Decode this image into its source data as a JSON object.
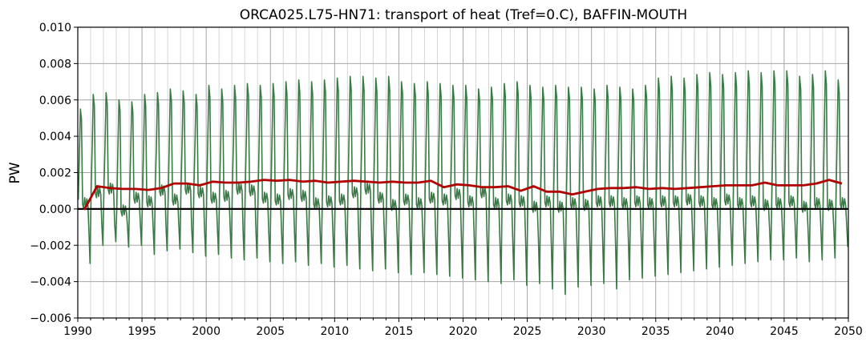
{
  "chart_data": {
    "type": "line",
    "title": "ORCA025.L75-HN71: transport of heat (Tref=0.C), BAFFIN-MOUTH",
    "xlabel": "",
    "ylabel": "PW",
    "xlim": [
      1990,
      2050
    ],
    "ylim": [
      -0.006,
      0.01
    ],
    "x_ticks": [
      "1990",
      "1995",
      "2000",
      "2005",
      "2010",
      "2015",
      "2020",
      "2025",
      "2030",
      "2035",
      "2040",
      "2045",
      "2050"
    ],
    "y_ticks": [
      "−0.006",
      "−0.004",
      "−0.002",
      "0.000",
      "0.002",
      "0.004",
      "0.006",
      "0.008",
      "0.010"
    ],
    "grid": true,
    "zero_line": 0.0,
    "colors": {
      "monthly": "#3a7a45",
      "annual": "#b00000",
      "zero": "#000000"
    },
    "series": [
      {
        "role": "monthly",
        "start_year": 1990.04,
        "step": 0.08333,
        "peak_months": [
          2,
          3
        ],
        "note_pattern": "seasonal cycle: sharp positive peak (~0.0055-0.0076 PW) in Feb-Mar, minimum (~-0.002 to -0.0047 PW) around Dec, small oscillations near 0 mid-year",
        "peaks": [
          0.0055,
          0.0063,
          0.0064,
          0.006,
          0.0059,
          0.0063,
          0.0064,
          0.0066,
          0.0065,
          0.0063,
          0.0068,
          0.0066,
          0.0068,
          0.0069,
          0.0068,
          0.0069,
          0.007,
          0.0071,
          0.007,
          0.0071,
          0.0072,
          0.0073,
          0.0073,
          0.0072,
          0.0073,
          0.007,
          0.0069,
          0.007,
          0.0069,
          0.0068,
          0.0068,
          0.0066,
          0.0067,
          0.0069,
          0.007,
          0.0068,
          0.0067,
          0.0068,
          0.0067,
          0.0067,
          0.0066,
          0.0068,
          0.0067,
          0.0066,
          0.0068,
          0.0072,
          0.0073,
          0.0072,
          0.0074,
          0.0075,
          0.0074,
          0.0075,
          0.0076,
          0.0075,
          0.0076,
          0.0076,
          0.0073,
          0.0074,
          0.0076,
          0.0071
        ],
        "troughs": [
          -0.003,
          -0.002,
          -0.0018,
          -0.0021,
          -0.002,
          -0.0025,
          -0.0023,
          -0.0022,
          -0.0024,
          -0.0026,
          -0.0025,
          -0.0027,
          -0.0028,
          -0.0027,
          -0.0029,
          -0.003,
          -0.0029,
          -0.0031,
          -0.003,
          -0.0032,
          -0.0031,
          -0.0033,
          -0.0034,
          -0.0033,
          -0.0035,
          -0.0036,
          -0.0035,
          -0.0036,
          -0.0037,
          -0.0038,
          -0.0039,
          -0.004,
          -0.0041,
          -0.0039,
          -0.0042,
          -0.0041,
          -0.0044,
          -0.0047,
          -0.0043,
          -0.0042,
          -0.0041,
          -0.0044,
          -0.0039,
          -0.0038,
          -0.0037,
          -0.0036,
          -0.0035,
          -0.0034,
          -0.0033,
          -0.0032,
          -0.0031,
          -0.003,
          -0.0029,
          -0.0028,
          -0.0028,
          -0.0027,
          -0.0029,
          -0.0028,
          -0.0027,
          -0.0021
        ],
        "midyear": [
          0.0002,
          0.0008,
          0.001,
          -0.0002,
          0.0005,
          0.0003,
          0.0009,
          0.0004,
          0.001,
          0.0008,
          0.0005,
          0.0006,
          0.001,
          0.0009,
          0.0005,
          0.0004,
          0.0007,
          0.0006,
          0.0002,
          0.0003,
          0.0004,
          0.0008,
          0.001,
          0.0005,
          0.0001,
          0.0004,
          0.0002,
          0.0005,
          0.0004,
          0.0007,
          0.0003,
          0.0008,
          0.0002,
          0.0004,
          0.0003,
          0.0,
          0.0003,
          0.0,
          0.0002,
          0.0001,
          0.0003,
          0.0003,
          0.0002,
          0.0003,
          0.0002,
          0.0003,
          0.0003,
          0.0004,
          0.0003,
          0.0002,
          0.0004,
          0.0002,
          0.0003,
          0.0001,
          0.0002,
          0.0003,
          0.0,
          0.0002,
          0.0001,
          0.0002
        ]
      },
      {
        "role": "annual",
        "x": [
          1990.5,
          1991.5,
          1992.5,
          1993.5,
          1994.5,
          1995.5,
          1996.5,
          1997.5,
          1998.5,
          1999.5,
          2000.5,
          2001.5,
          2002.5,
          2003.5,
          2004.5,
          2005.5,
          2006.5,
          2007.5,
          2008.5,
          2009.5,
          2010.5,
          2011.5,
          2012.5,
          2013.5,
          2014.5,
          2015.5,
          2016.5,
          2017.5,
          2018.5,
          2019.5,
          2020.5,
          2021.5,
          2022.5,
          2023.5,
          2024.5,
          2025.5,
          2026.5,
          2027.5,
          2028.5,
          2029.5,
          2030.5,
          2031.5,
          2032.5,
          2033.5,
          2034.5,
          2035.5,
          2036.5,
          2037.5,
          2038.5,
          2039.5,
          2040.5,
          2041.5,
          2042.5,
          2043.5,
          2044.5,
          2045.5,
          2046.5,
          2047.5,
          2048.5,
          2049.5
        ],
        "values": [
          -5e-05,
          0.00125,
          0.00115,
          0.0011,
          0.0011,
          0.00105,
          0.00115,
          0.0014,
          0.0014,
          0.0013,
          0.0015,
          0.00145,
          0.00145,
          0.0015,
          0.0016,
          0.00155,
          0.0016,
          0.0015,
          0.00155,
          0.00145,
          0.0015,
          0.00155,
          0.0015,
          0.00145,
          0.0015,
          0.00145,
          0.00145,
          0.00155,
          0.0012,
          0.00135,
          0.0013,
          0.0012,
          0.0012,
          0.00125,
          0.001,
          0.00125,
          0.00095,
          0.00095,
          0.0008,
          0.00095,
          0.0011,
          0.00115,
          0.00115,
          0.0012,
          0.0011,
          0.00115,
          0.0011,
          0.00115,
          0.0012,
          0.00125,
          0.0013,
          0.0013,
          0.0013,
          0.00145,
          0.0013,
          0.0013,
          0.0013,
          0.0014,
          0.0016,
          0.0014
        ]
      }
    ]
  }
}
